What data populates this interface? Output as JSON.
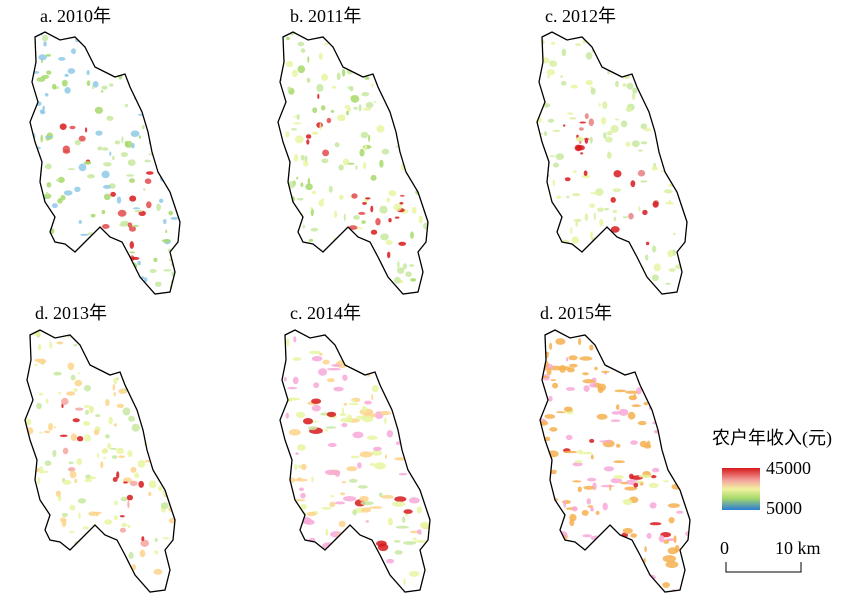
{
  "panels": [
    {
      "label": "a. 2010年"
    },
    {
      "label": "b. 2011年"
    },
    {
      "label": "c. 2012年"
    },
    {
      "label": "d. 2013年"
    },
    {
      "label": "c. 2014年"
    },
    {
      "label": "d. 2015年"
    }
  ],
  "legend": {
    "title": "农户年收入(元)",
    "max": 45000,
    "min": 5000
  },
  "scale_bar": {
    "start": 0,
    "end": "10 km"
  }
}
